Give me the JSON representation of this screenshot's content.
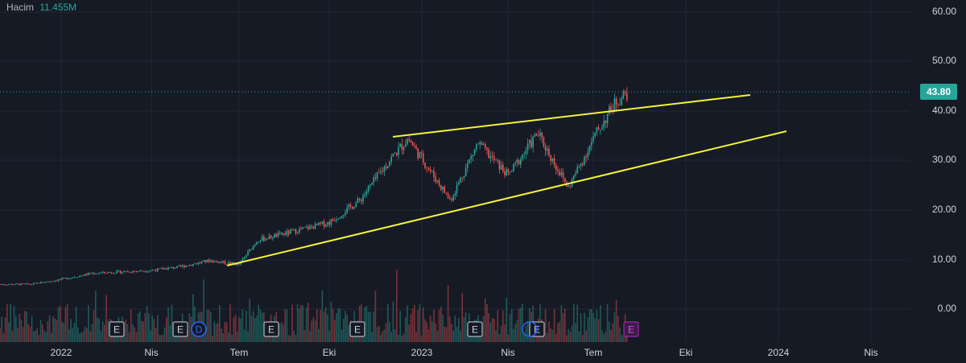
{
  "legend": {
    "label": "Hacim",
    "value": "11.455M"
  },
  "last_price": "43.80",
  "colors": {
    "bg": "#161a25",
    "up": "#26a69a",
    "down": "#ef5350",
    "trend": "#f4f43a",
    "grid": "#232633"
  },
  "chart_data": {
    "type": "candlestick",
    "y_ticks": [
      "60.00",
      "50.00",
      "40.00",
      "30.00",
      "20.00",
      "10.00",
      "0.00"
    ],
    "x_ticks": [
      "2022",
      "Nis",
      "Tem",
      "Eki",
      "2023",
      "Nis",
      "Tem",
      "Eki",
      "2024",
      "Nis"
    ],
    "ylim": [
      0,
      60
    ],
    "last_price": 43.8,
    "volume_label": "Hacim 11.455M",
    "price_path": [
      [
        "2021-12",
        5.0
      ],
      [
        "2022-01",
        6.0
      ],
      [
        "2022-02",
        7.2
      ],
      [
        "2022-03",
        7.5
      ],
      [
        "2022-04",
        7.8
      ],
      [
        "2022-05",
        8.5
      ],
      [
        "2022-06",
        9.8
      ],
      [
        "2022-07",
        9.0
      ],
      [
        "2022-07-20",
        14.0
      ],
      [
        "2022-08",
        14.5
      ],
      [
        "2022-09",
        16.0
      ],
      [
        "2022-10",
        17.5
      ],
      [
        "2022-11",
        22.0
      ],
      [
        "2022-12",
        30.0
      ],
      [
        "2022-12-20",
        34.5
      ],
      [
        "2023-01",
        31.0
      ],
      [
        "2023-02",
        22.0
      ],
      [
        "2023-03",
        33.5
      ],
      [
        "2023-04",
        27.0
      ],
      [
        "2023-05",
        35.5
      ],
      [
        "2023-06",
        24.5
      ],
      [
        "2023-07",
        36.0
      ],
      [
        "2023-07-20",
        42.0
      ],
      [
        "2023-08",
        43.8
      ]
    ],
    "trendlines": [
      {
        "name": "upper",
        "from": [
          "2022-12-01",
          34.7
        ],
        "to": [
          "2023-12-15",
          42.7
        ]
      },
      {
        "name": "lower",
        "from": [
          "2022-06-25",
          8.3
        ],
        "to": [
          "2024-01-05",
          35.3
        ]
      }
    ],
    "events": [
      "E",
      "E",
      "D",
      "E",
      "E",
      "E",
      "E",
      "E"
    ]
  }
}
